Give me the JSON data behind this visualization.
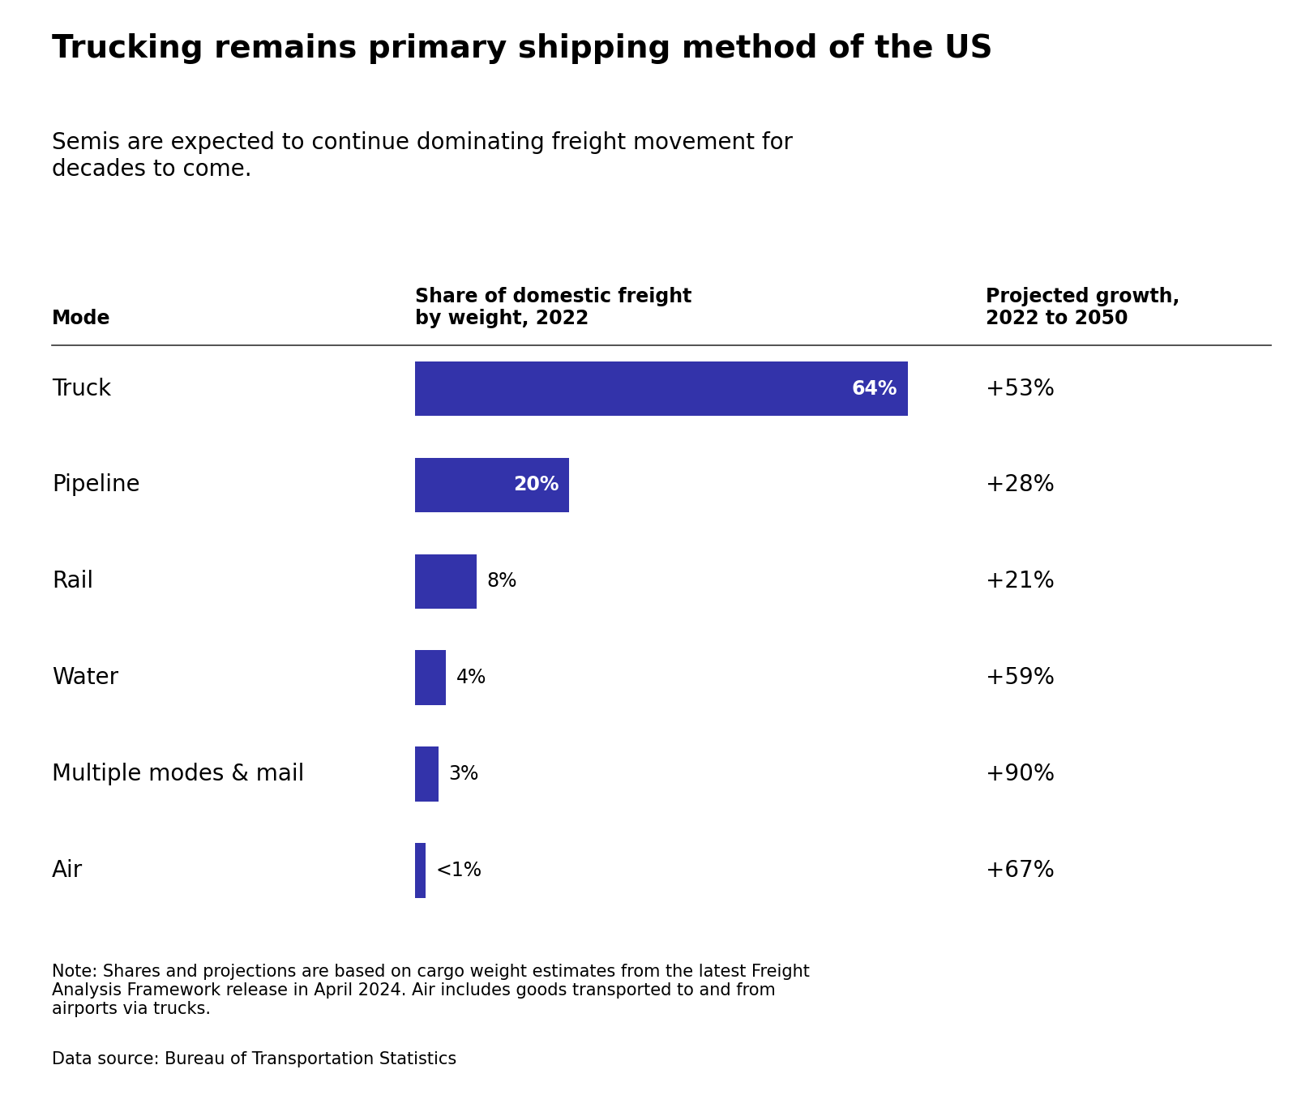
{
  "title": "Trucking remains primary shipping method of the US",
  "subtitle": "Semis are expected to continue dominating freight movement for\ndecades to come.",
  "col_header_mode": "Mode",
  "col_header_share": "Share of domestic freight\nby weight, 2022",
  "col_header_growth": "Projected growth,\n2022 to 2050",
  "modes": [
    "Truck",
    "Pipeline",
    "Rail",
    "Water",
    "Multiple modes & mail",
    "Air"
  ],
  "share_values": [
    64,
    20,
    8,
    4,
    3,
    0
  ],
  "share_labels": [
    "64%",
    "20%",
    "8%",
    "4%",
    "3%",
    "<1%"
  ],
  "growth_labels": [
    "+53%",
    "+28%",
    "+21%",
    "+59%",
    "+90%",
    "+67%"
  ],
  "bar_color": "#3333AA",
  "bar_max": 64,
  "note": "Note: Shares and projections are based on cargo weight estimates from the latest Freight\nAnalysis Framework release in April 2024. Air includes goods transported to and from\nairports via trucks.",
  "source": "Data source: Bureau of Transportation Statistics",
  "bg_color": "#ffffff",
  "text_color": "#000000",
  "title_fontsize": 28,
  "subtitle_fontsize": 20,
  "header_fontsize": 17,
  "mode_fontsize": 20,
  "bar_label_fontsize": 17,
  "growth_fontsize": 20,
  "note_fontsize": 15,
  "source_fontsize": 15
}
